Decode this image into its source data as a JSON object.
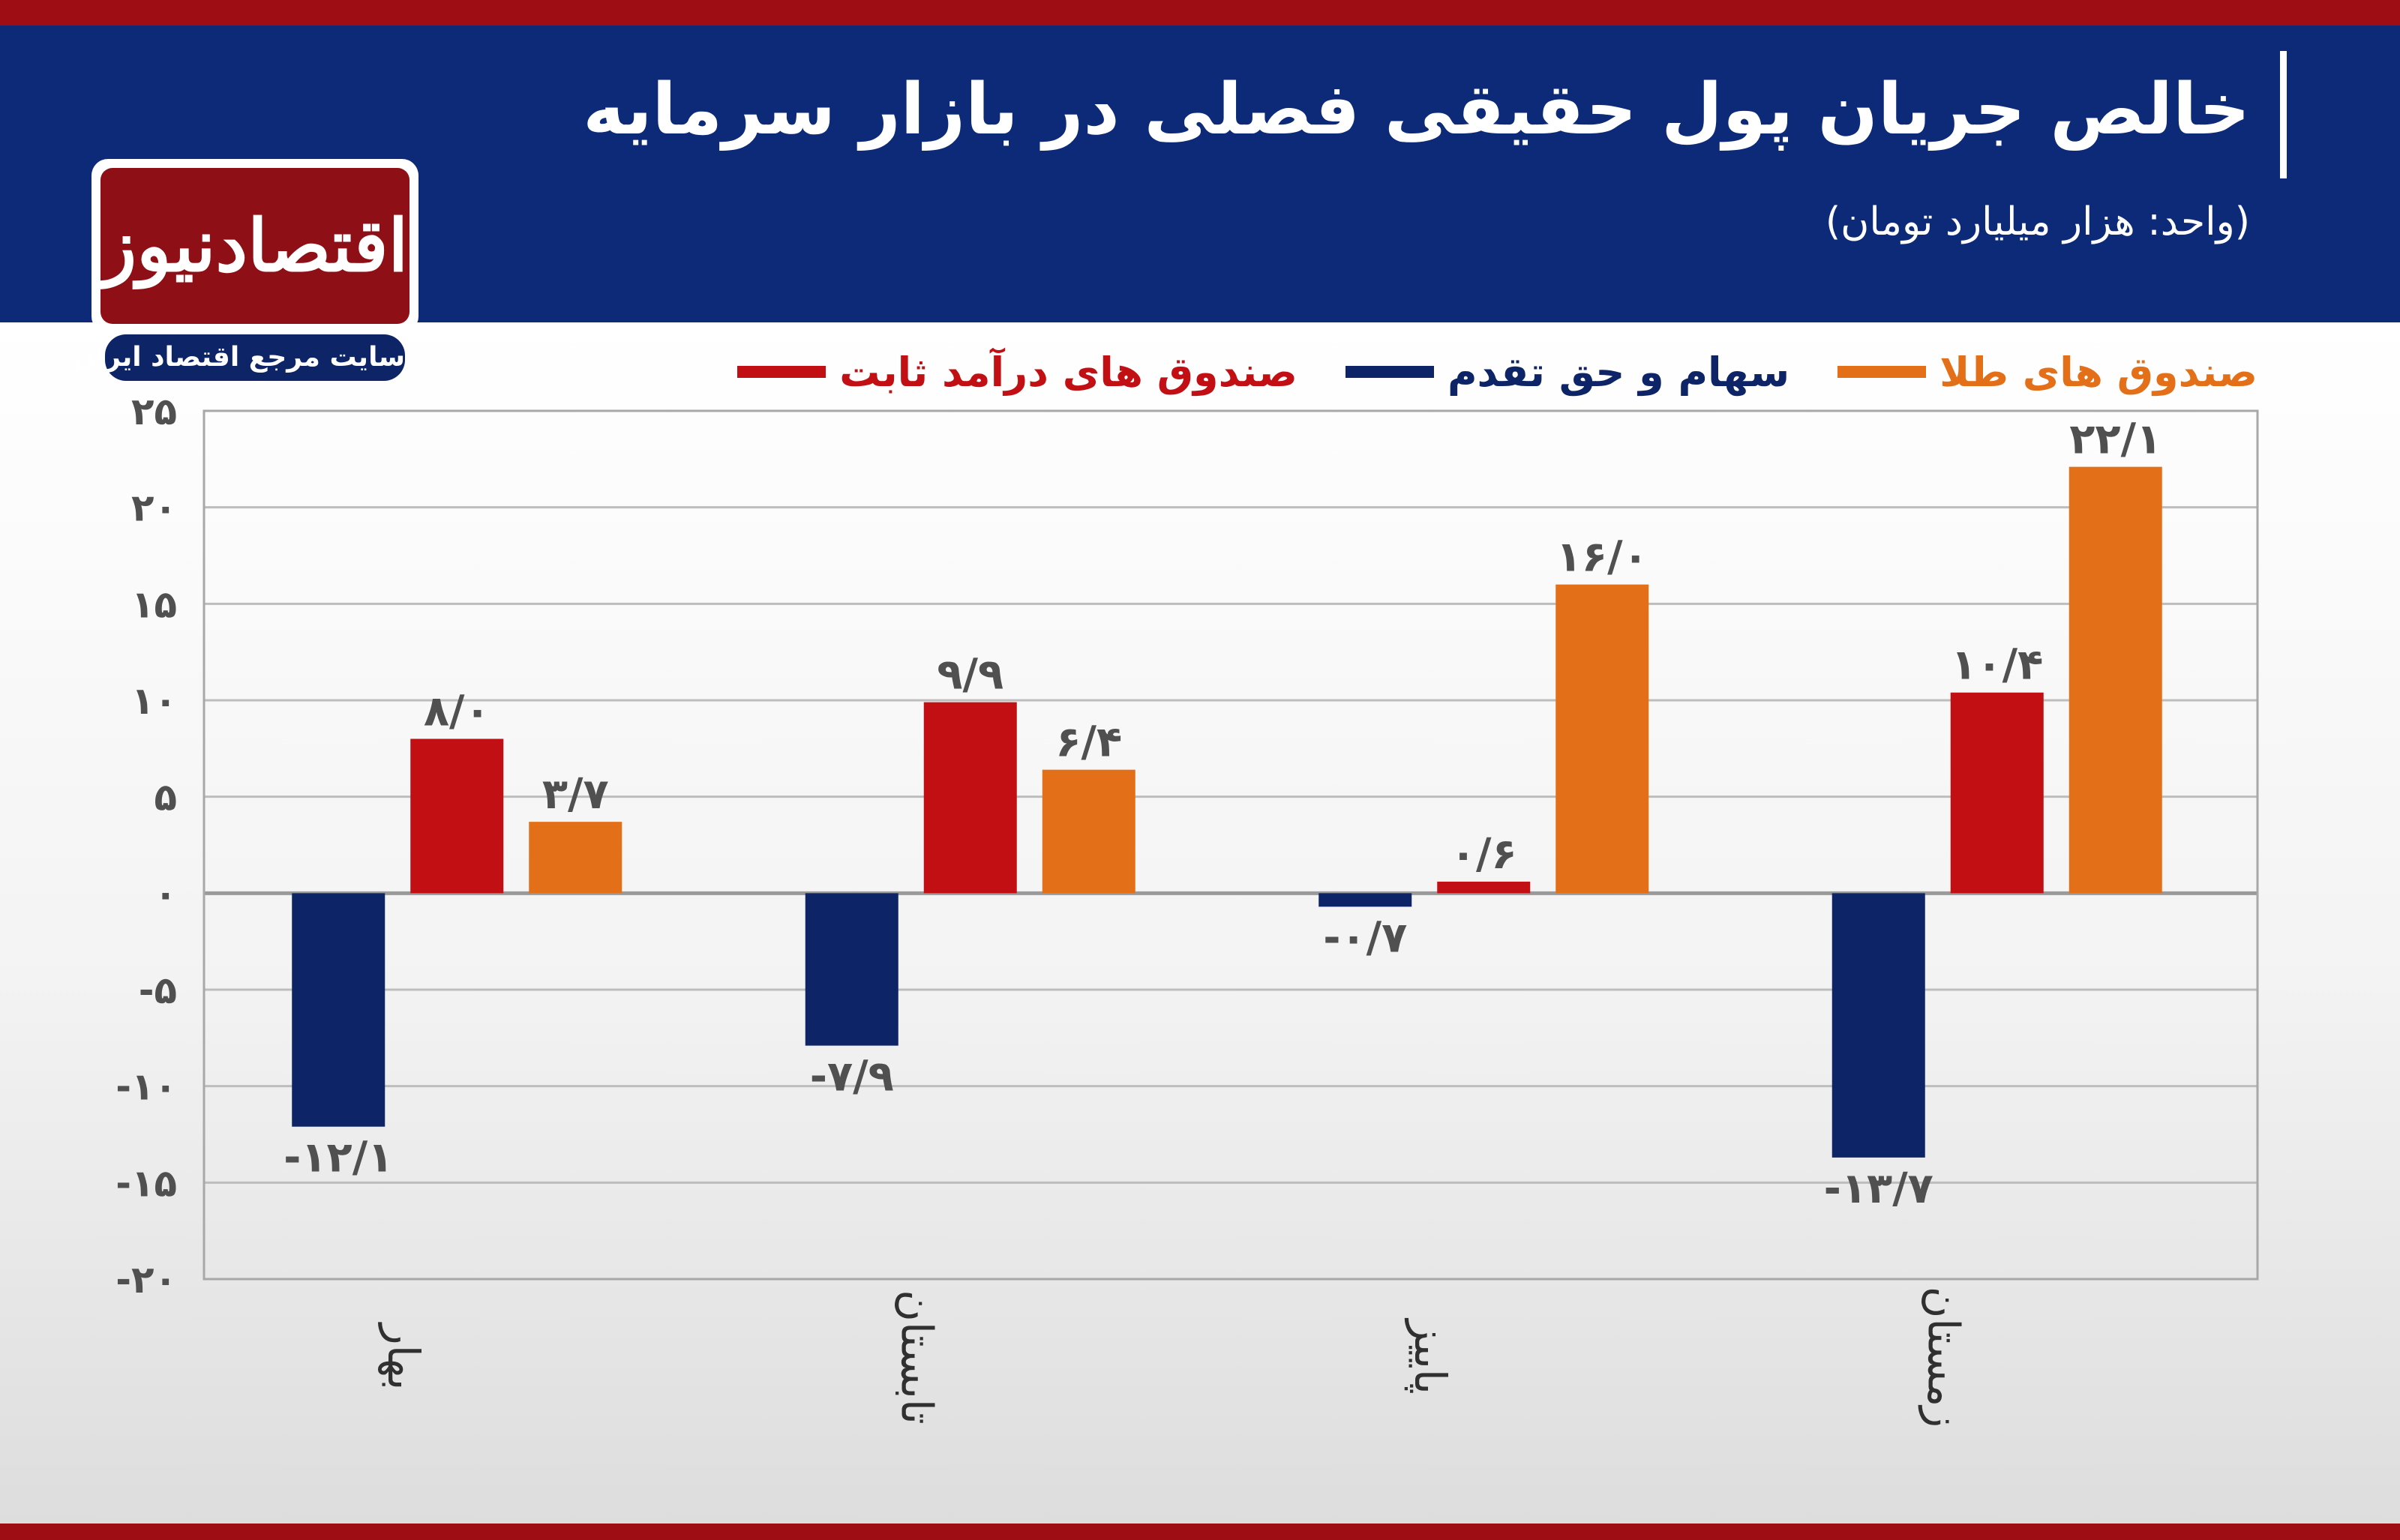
{
  "header": {
    "title": "خالص جریان پول حقیقی فصلی در بازار سرمایه",
    "subtitle": "(واحد: هزار میلیارد تومان)"
  },
  "logo": {
    "name": "اقتصادنیوز",
    "tagline": "سایت مرجع اقتصاد ایران"
  },
  "colors": {
    "header_bg": "#0c2a78",
    "accent_red_strip": "#9e0c14",
    "series_gold": "#e37019",
    "series_stocks": "#0d2466",
    "series_fixed": "#c10f14",
    "label_gray": "#505050"
  },
  "chart_data": {
    "type": "bar",
    "categories": [
      "بهار",
      "تابستان",
      "پاییز",
      "زمستان"
    ],
    "series": [
      {
        "name": "سهام و حق تقدم",
        "color": "#0d2466",
        "values": [
          -12.1,
          -7.9,
          -0.7,
          -13.7
        ],
        "labels": [
          "-۱۲/۱",
          "-۷/۹",
          "-۰/۷",
          "-۱۳/۷"
        ]
      },
      {
        "name": "صندوق های درآمد ثابت",
        "color": "#c10f14",
        "values": [
          8.0,
          9.9,
          0.6,
          10.4
        ],
        "labels": [
          "۸/۰",
          "۹/۹",
          "۰/۶",
          "۱۰/۴"
        ]
      },
      {
        "name": "صندوق های طلا",
        "color": "#e37019",
        "values": [
          3.7,
          6.4,
          16.0,
          22.1
        ],
        "labels": [
          "۳/۷",
          "۶/۴",
          "۱۶/۰",
          "۲۲/۱"
        ]
      }
    ],
    "legend_order": [
      "صندوق های طلا",
      "سهام و حق تقدم",
      "صندوق های درآمد ثابت"
    ],
    "legend_position": "top",
    "ylim": [
      -20,
      25
    ],
    "yticks": [
      25,
      20,
      15,
      10,
      5,
      0,
      -5,
      -10,
      -15,
      -20
    ],
    "ytick_labels": [
      "۲۵",
      "۲۰",
      "۱۵",
      "۱۰",
      "۵",
      "۰",
      "-۵",
      "-۱۰",
      "-۱۵",
      "-۲۰"
    ],
    "grid": true,
    "xlabel": "",
    "ylabel": ""
  }
}
